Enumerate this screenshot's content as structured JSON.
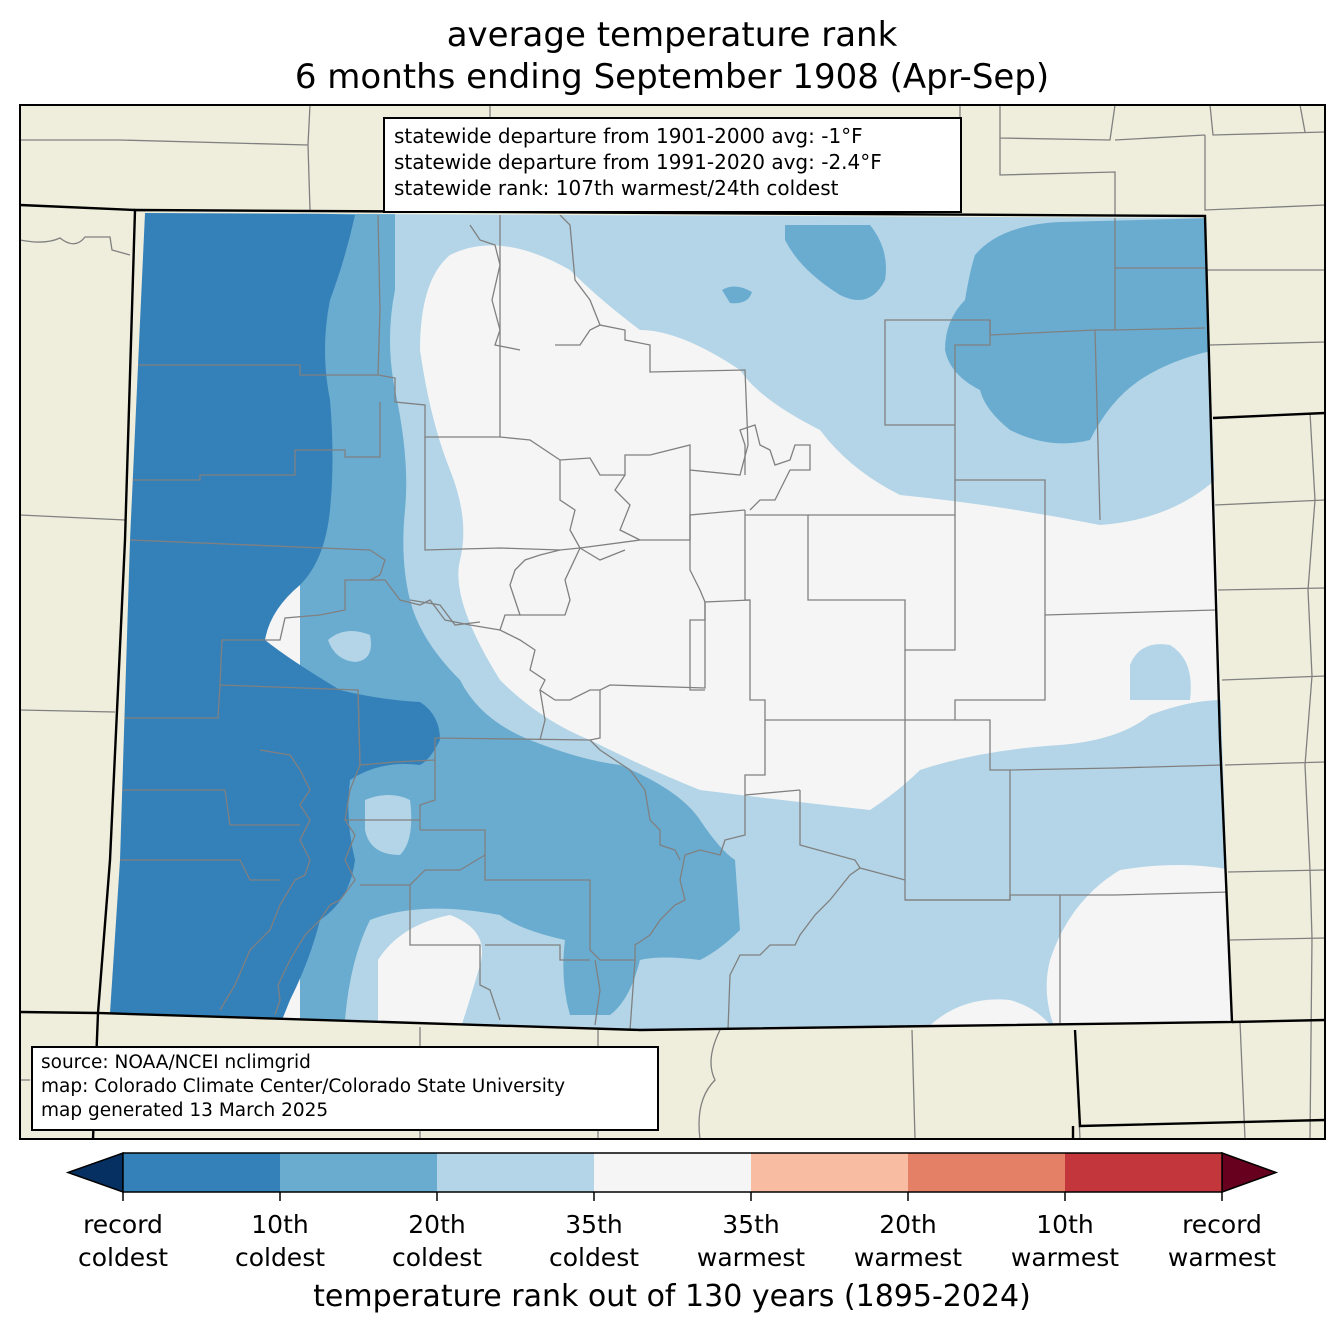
{
  "title": {
    "line1": "average temperature rank",
    "line2": "6 months ending September 1908 (Apr-Sep)"
  },
  "stats": {
    "line1": "statewide departure from 1901-2000 avg: -1°F",
    "line2": "statewide departure from 1991-2020 avg: -2.4°F",
    "line3": "statewide rank: 107th warmest/24th coldest"
  },
  "credits": {
    "line1": "source: NOAA/NCEI nclimgrid",
    "line2": "map: Colorado Climate Center/Colorado State University",
    "line3": "map generated 13 March 2025"
  },
  "colorbar": {
    "xlabel": "temperature rank out of 130 years (1895-2024)",
    "under_color": "#053061",
    "over_color": "#67001f",
    "bins": [
      {
        "color": "#3480b9"
      },
      {
        "color": "#6aacd0"
      },
      {
        "color": "#b3d5e7"
      },
      {
        "color": "#f5f5f5"
      },
      {
        "color": "#f7bca1"
      },
      {
        "color": "#e48066"
      },
      {
        "color": "#c3373c"
      }
    ],
    "ticks": [
      {
        "line1": "record",
        "line2": "coldest"
      },
      {
        "line1": "10th",
        "line2": "coldest"
      },
      {
        "line1": "20th",
        "line2": "coldest"
      },
      {
        "line1": "35th",
        "line2": "coldest"
      },
      {
        "line1": "35th",
        "line2": "warmest"
      },
      {
        "line1": "20th",
        "line2": "warmest"
      },
      {
        "line1": "10th",
        "line2": "warmest"
      },
      {
        "line1": "record",
        "line2": "warmest"
      }
    ]
  },
  "map_colors": {
    "land": "#efeedc",
    "county_line": "#808080",
    "state_line": "#000000"
  }
}
